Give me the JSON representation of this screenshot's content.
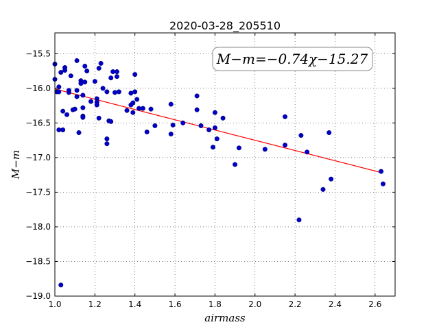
{
  "chart_data": {
    "type": "scatter",
    "title": "2020-03-28_205510",
    "xlabel": "airmass",
    "ylabel": "M−m",
    "xlim": [
      1.0,
      2.7
    ],
    "ylim": [
      -19.0,
      -15.2
    ],
    "y_inverted": true,
    "grid": true,
    "x_ticks": [
      "1.0",
      "1.2",
      "1.4",
      "1.6",
      "1.8",
      "2.0",
      "2.2",
      "2.4",
      "2.6"
    ],
    "y_ticks": [
      "−15.5",
      "−16.0",
      "−16.5",
      "−17.0",
      "−17.5",
      "−18.0",
      "−18.5",
      "−19.0"
    ],
    "annotation": "M−m=−0.74χ−15.27",
    "point_color": "#0000cc",
    "fit_color": "#ff0000",
    "fit": {
      "slope": -0.74,
      "intercept": -15.27,
      "x_range": [
        1.0,
        2.63
      ]
    },
    "points": [
      [
        1.0,
        -15.65
      ],
      [
        1.0,
        -15.87
      ],
      [
        1.01,
        -16.05
      ],
      [
        1.02,
        -15.98
      ],
      [
        1.02,
        -16.05
      ],
      [
        1.02,
        -16.6
      ],
      [
        1.03,
        -15.77
      ],
      [
        1.03,
        -18.84
      ],
      [
        1.04,
        -16.33
      ],
      [
        1.04,
        -16.6
      ],
      [
        1.05,
        -15.7
      ],
      [
        1.05,
        -15.74
      ],
      [
        1.06,
        -16.38
      ],
      [
        1.07,
        -16.03
      ],
      [
        1.07,
        -16.06
      ],
      [
        1.08,
        -15.82
      ],
      [
        1.09,
        -16.31
      ],
      [
        1.1,
        -16.3
      ],
      [
        1.11,
        -15.6
      ],
      [
        1.11,
        -16.03
      ],
      [
        1.11,
        -16.12
      ],
      [
        1.12,
        -16.64
      ],
      [
        1.13,
        -15.89
      ],
      [
        1.13,
        -15.93
      ],
      [
        1.14,
        -16.1
      ],
      [
        1.14,
        -16.28
      ],
      [
        1.14,
        -16.4
      ],
      [
        1.14,
        -16.42
      ],
      [
        1.15,
        -15.68
      ],
      [
        1.15,
        -15.91
      ],
      [
        1.16,
        -15.75
      ],
      [
        1.18,
        -16.19
      ],
      [
        1.2,
        -15.9
      ],
      [
        1.21,
        -16.15
      ],
      [
        1.21,
        -16.2
      ],
      [
        1.21,
        -16.24
      ],
      [
        1.22,
        -15.71
      ],
      [
        1.22,
        -16.43
      ],
      [
        1.23,
        -15.64
      ],
      [
        1.24,
        -16.0
      ],
      [
        1.26,
        -16.05
      ],
      [
        1.26,
        -16.73
      ],
      [
        1.26,
        -16.8
      ],
      [
        1.27,
        -16.47
      ],
      [
        1.28,
        -15.85
      ],
      [
        1.28,
        -16.48
      ],
      [
        1.29,
        -15.76
      ],
      [
        1.3,
        -16.06
      ],
      [
        1.31,
        -15.76
      ],
      [
        1.31,
        -15.83
      ],
      [
        1.32,
        -16.05
      ],
      [
        1.36,
        -16.32
      ],
      [
        1.38,
        -16.07
      ],
      [
        1.38,
        -16.24
      ],
      [
        1.39,
        -16.21
      ],
      [
        1.39,
        -16.35
      ],
      [
        1.4,
        -15.8
      ],
      [
        1.4,
        -16.05
      ],
      [
        1.41,
        -16.16
      ],
      [
        1.42,
        -16.29
      ],
      [
        1.44,
        -16.29
      ],
      [
        1.46,
        -16.63
      ],
      [
        1.48,
        -16.3
      ],
      [
        1.5,
        -16.54
      ],
      [
        1.58,
        -16.23
      ],
      [
        1.58,
        -16.66
      ],
      [
        1.59,
        -16.53
      ],
      [
        1.64,
        -16.5
      ],
      [
        1.71,
        -16.11
      ],
      [
        1.71,
        -16.31
      ],
      [
        1.73,
        -16.54
      ],
      [
        1.77,
        -16.6
      ],
      [
        1.79,
        -16.85
      ],
      [
        1.8,
        -16.35
      ],
      [
        1.8,
        -16.57
      ],
      [
        1.81,
        -16.73
      ],
      [
        1.84,
        -16.43
      ],
      [
        1.9,
        -17.1
      ],
      [
        1.92,
        -16.86
      ],
      [
        2.05,
        -16.88
      ],
      [
        2.15,
        -16.41
      ],
      [
        2.15,
        -16.82
      ],
      [
        2.22,
        -17.9
      ],
      [
        2.23,
        -16.68
      ],
      [
        2.26,
        -16.92
      ],
      [
        2.34,
        -17.46
      ],
      [
        2.37,
        -16.64
      ],
      [
        2.38,
        -17.31
      ],
      [
        2.63,
        -17.2
      ],
      [
        2.64,
        -17.38
      ]
    ]
  }
}
